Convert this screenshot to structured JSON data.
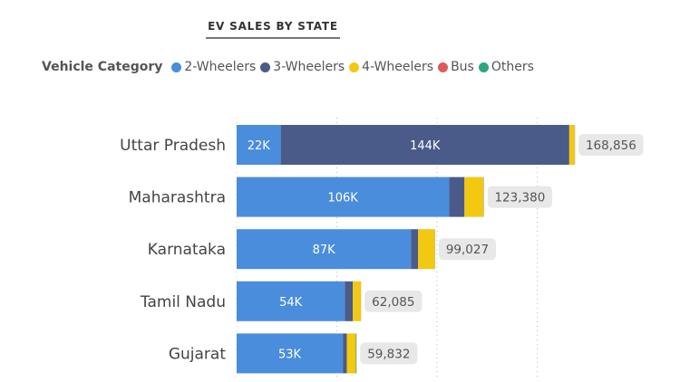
{
  "chart_data": {
    "type": "bar",
    "orientation": "horizontal",
    "stacked": true,
    "title": "EV SALES BY STATE",
    "legend_title": "Vehicle Category",
    "legend_position": "top-left",
    "categories": [
      "Uttar Pradesh",
      "Maharashtra",
      "Karnataka",
      "Tamil Nadu",
      "Gujarat"
    ],
    "series": [
      {
        "name": "2-Wheelers",
        "color": "#4A8DDC",
        "values": [
          22000,
          106000,
          87000,
          54000,
          53000
        ],
        "labels": [
          "22K",
          "106K",
          "87K",
          "54K",
          "53K"
        ]
      },
      {
        "name": "3-Wheelers",
        "color": "#4A5B8A",
        "values": [
          144000,
          7700,
          3600,
          4000,
          2000
        ],
        "labels": [
          "144K",
          "",
          "",
          "",
          ""
        ]
      },
      {
        "name": "4-Wheelers",
        "color": "#F2C811",
        "values": [
          2700,
          9500,
          8300,
          4000,
          4500
        ],
        "labels": [
          "",
          "",
          "",
          "",
          ""
        ]
      },
      {
        "name": "Bus",
        "color": "#DD5A5A",
        "values": [
          100,
          100,
          60,
          40,
          0
        ],
        "labels": [
          "",
          "",
          "",
          "",
          ""
        ]
      },
      {
        "name": "Others",
        "color": "#2EA77A",
        "values": [
          56,
          80,
          67,
          45,
          332
        ],
        "labels": [
          "",
          "",
          "",
          "",
          ""
        ]
      }
    ],
    "totals": [
      168856,
      123380,
      99027,
      62085,
      59832
    ],
    "total_labels": [
      "168,856",
      "123,380",
      "99,027",
      "62,085",
      "59,832"
    ],
    "xlim": [
      0,
      170000
    ],
    "gridlines": [
      50000,
      100000,
      150000
    ],
    "grid": true
  }
}
